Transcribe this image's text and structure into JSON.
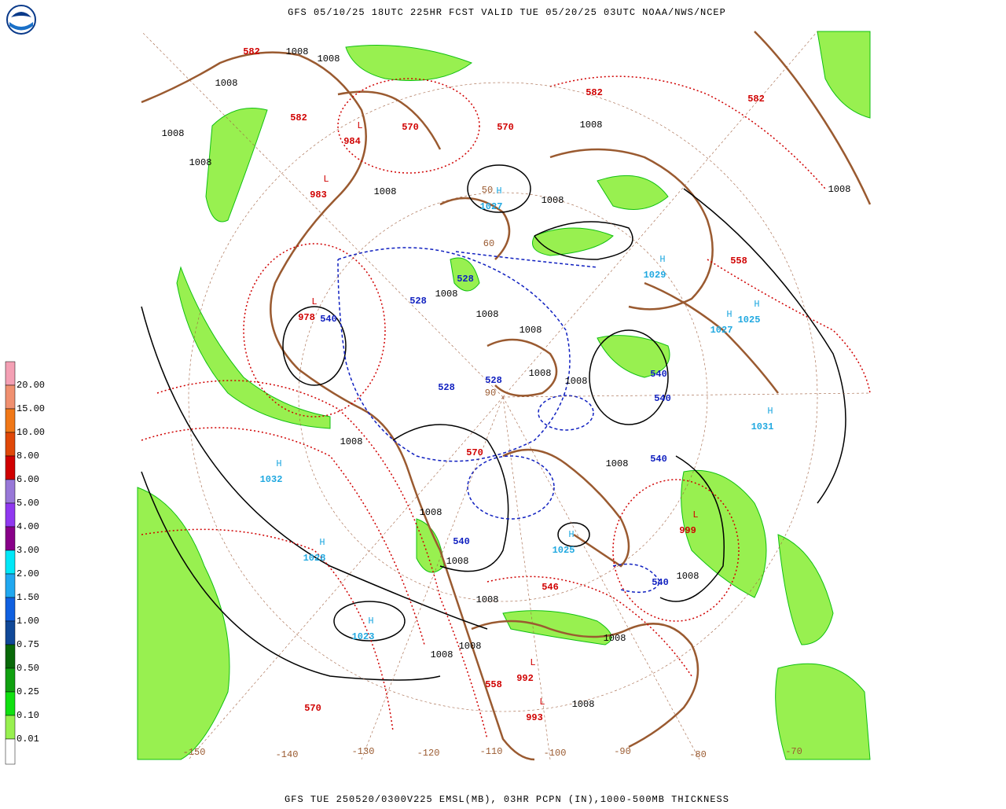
{
  "header": {
    "title": "GFS 05/10/25 18UTC 225HR FCST VALID TUE 05/20/25 03UTC NOAA/NWS/NCEP"
  },
  "footer": {
    "caption": "GFS TUE 250520/0300V225 EMSL(MB), 03HR PCPN (IN),1000-500MB THICKNESS"
  },
  "legend": {
    "items": [
      {
        "label": "20.00",
        "color": "#f4a0b4"
      },
      {
        "label": "15.00",
        "color": "#f09070"
      },
      {
        "label": "10.00",
        "color": "#f07818"
      },
      {
        "label": "8.00",
        "color": "#e04808"
      },
      {
        "label": "6.00",
        "color": "#d00000"
      },
      {
        "label": "5.00",
        "color": "#9878d8"
      },
      {
        "label": "4.00",
        "color": "#9038f0"
      },
      {
        "label": "3.00",
        "color": "#880088"
      },
      {
        "label": "2.00",
        "color": "#00e8f8"
      },
      {
        "label": "1.50",
        "color": "#20a8f0"
      },
      {
        "label": "1.00",
        "color": "#1060e0"
      },
      {
        "label": "0.75",
        "color": "#104898"
      },
      {
        "label": "0.50",
        "color": "#086808"
      },
      {
        "label": "0.25",
        "color": "#10a010"
      },
      {
        "label": "0.10",
        "color": "#10e010"
      },
      {
        "label": "0.01",
        "color": "#98f050"
      }
    ]
  },
  "map": {
    "pressure_centers": [
      {
        "symbol": "H",
        "value": "1027"
      },
      {
        "symbol": "H",
        "value": "1029"
      },
      {
        "symbol": "H",
        "value": "1027"
      },
      {
        "symbol": "H",
        "value": "1025"
      },
      {
        "symbol": "H",
        "value": "1031"
      },
      {
        "symbol": "H",
        "value": "1032"
      },
      {
        "symbol": "H",
        "value": "1028"
      },
      {
        "symbol": "H",
        "value": "1023"
      },
      {
        "symbol": "H",
        "value": "1025"
      },
      {
        "symbol": "L",
        "value": "983"
      },
      {
        "symbol": "L",
        "value": "984"
      },
      {
        "symbol": "L",
        "value": "978"
      },
      {
        "symbol": "L",
        "value": "999"
      },
      {
        "symbol": "L",
        "value": "992"
      },
      {
        "symbol": "L",
        "value": "993"
      }
    ],
    "thickness_labels": [
      "582",
      "582",
      "582",
      "582",
      "570",
      "570",
      "558",
      "558",
      "546",
      "540",
      "540",
      "540",
      "540",
      "540",
      "540",
      "528",
      "528",
      "528",
      "528",
      "570",
      "570"
    ],
    "isobar_labels": [
      "1008",
      "1008",
      "1008",
      "1008",
      "1008",
      "1008",
      "1008",
      "1008",
      "1008",
      "1008",
      "1008",
      "1008",
      "1008",
      "1008",
      "1008",
      "1008",
      "1008",
      "1008",
      "1008",
      "1008",
      "1008",
      "1008",
      "1008",
      "1008"
    ],
    "latitude_labels": [
      "50",
      "60",
      "90"
    ],
    "longitude_labels": [
      "-150",
      "-140",
      "-130",
      "-120",
      "-110",
      "-100",
      "-90",
      "-80",
      "-70"
    ]
  }
}
